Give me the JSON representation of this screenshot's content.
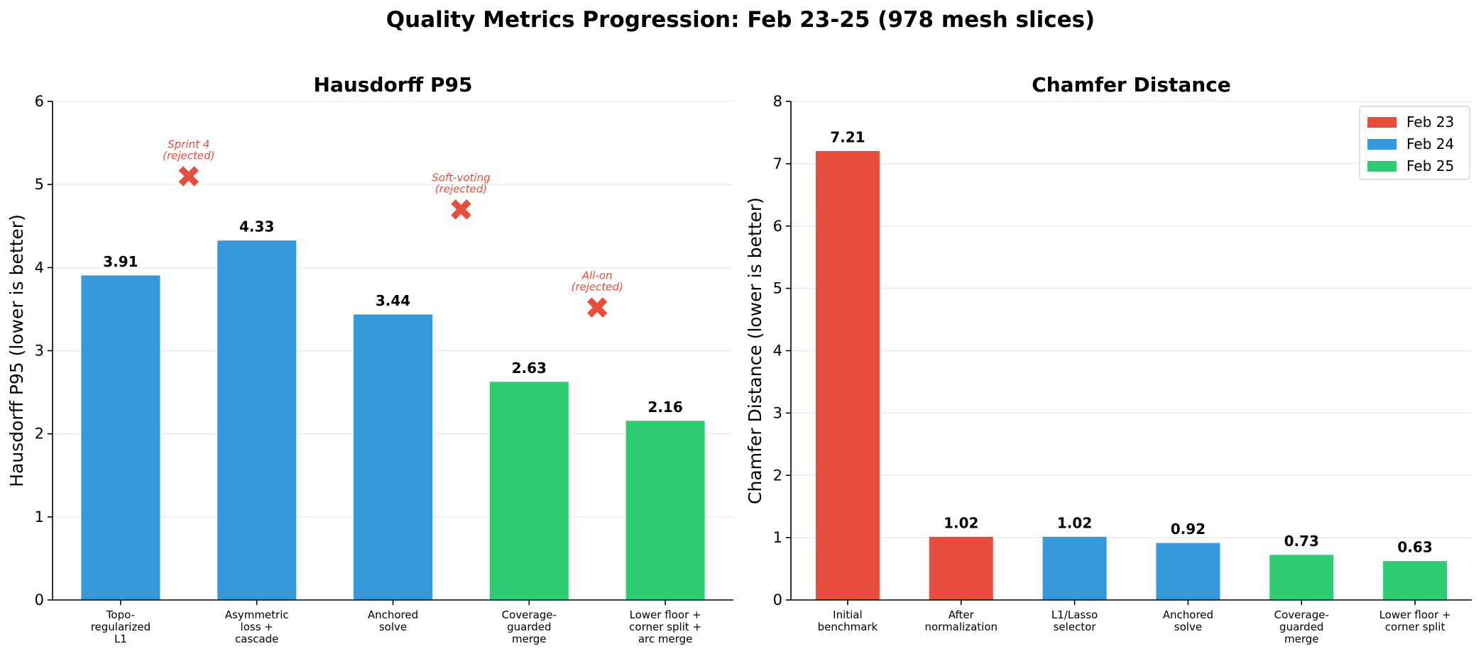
{
  "suptitle": "Quality Metrics Progression: Feb 23-25  (978 mesh slices)",
  "colors": {
    "Feb 23": "#e74c3c",
    "Feb 24": "#3498db",
    "Feb 25": "#2ecc71",
    "rejected": "#e74c3c"
  },
  "legend": {
    "placement": "upper-right",
    "entries": [
      "Feb 23",
      "Feb 24",
      "Feb 25"
    ]
  },
  "chart_data": [
    {
      "type": "bar",
      "title": "Hausdorff P95",
      "ylabel": "Hausdorff P95 (lower is better)",
      "xlabel": "",
      "ylim": [
        0,
        6
      ],
      "yticks": [
        0,
        1,
        2,
        3,
        4,
        5,
        6
      ],
      "grid": true,
      "categories": [
        [
          "Topo-",
          "regularized",
          "L1"
        ],
        [
          "Asymmetric",
          "loss +",
          "cascade"
        ],
        [
          "Anchored",
          "solve"
        ],
        [
          "Coverage-",
          "guarded",
          "merge"
        ],
        [
          "Lower floor +",
          "corner split +",
          "arc merge"
        ]
      ],
      "values": [
        3.91,
        4.33,
        3.44,
        2.63,
        2.16
      ],
      "value_labels": [
        "3.91",
        "4.33",
        "3.44",
        "2.63",
        "2.16"
      ],
      "groups": [
        "Feb 24",
        "Feb 24",
        "Feb 24",
        "Feb 25",
        "Feb 25"
      ],
      "rejected": [
        {
          "x": 0.5,
          "y": 5.1,
          "label": [
            "Sprint 4",
            "(rejected)"
          ]
        },
        {
          "x": 2.5,
          "y": 4.7,
          "label": [
            "Soft-voting",
            "(rejected)"
          ]
        },
        {
          "x": 3.5,
          "y": 3.52,
          "label": [
            "All-on",
            "(rejected)"
          ]
        }
      ]
    },
    {
      "type": "bar",
      "title": "Chamfer Distance",
      "ylabel": "Chamfer Distance (lower is better)",
      "xlabel": "",
      "ylim": [
        0,
        8
      ],
      "yticks": [
        0,
        1,
        2,
        3,
        4,
        5,
        6,
        7,
        8
      ],
      "grid": true,
      "categories": [
        [
          "Initial",
          "benchmark"
        ],
        [
          "After",
          "normalization"
        ],
        [
          "L1/Lasso",
          "selector"
        ],
        [
          "Anchored",
          "solve"
        ],
        [
          "Coverage-",
          "guarded",
          "merge"
        ],
        [
          "Lower floor +",
          "corner split"
        ]
      ],
      "values": [
        7.21,
        1.02,
        1.02,
        0.92,
        0.73,
        0.63
      ],
      "value_labels": [
        "7.21",
        "1.02",
        "1.02",
        "0.92",
        "0.73",
        "0.63"
      ],
      "groups": [
        "Feb 23",
        "Feb 23",
        "Feb 24",
        "Feb 24",
        "Feb 25",
        "Feb 25"
      ],
      "rejected": []
    }
  ]
}
